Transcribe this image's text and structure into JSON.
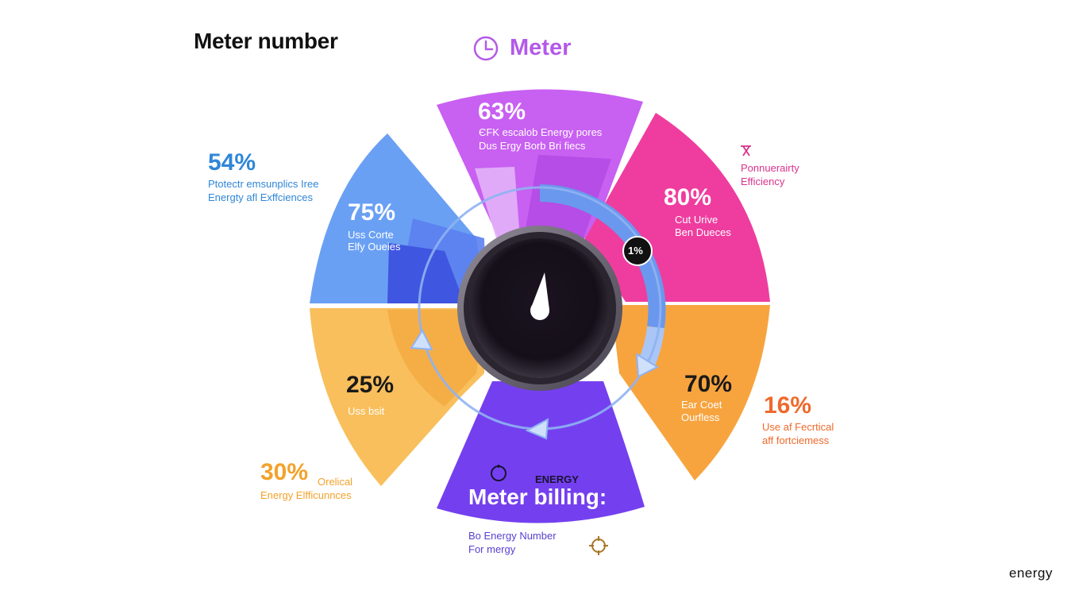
{
  "header": {
    "title": "Meter number",
    "meter_label": "Meter"
  },
  "segments": {
    "purple_top": {
      "percent": "63%",
      "line1": "ЄFK escalob Energy pores",
      "line2": "Dus Ergy Borb Bri fiecs"
    },
    "pink_right": {
      "percent": "80%",
      "line1": "Cut Urive",
      "line2": "Ben Dueces"
    },
    "orange_right": {
      "percent": "70%",
      "line1": "Ear Coet",
      "line2": "Ourfless"
    },
    "violet_bottom": {
      "kicker": "ENERGY",
      "title": "Meter billing:"
    },
    "yellow_left": {
      "percent": "25%",
      "line1": "Uss bsit"
    },
    "blue_left": {
      "percent": "75%",
      "line1": "Uss Corte",
      "line2": "Elfy Oueies"
    }
  },
  "badge": {
    "label": "1%"
  },
  "callouts": {
    "top_left": {
      "percent": "54%",
      "line1": "Ptotectr emsunplics Iree",
      "line2": "Energty afl Exffciences"
    },
    "top_right": {
      "line1": "Ponnuerairty",
      "line2": "Efficiency"
    },
    "mid_right": {
      "percent": "16%",
      "line1": "Use af Fecrtical",
      "line2": "aff fortciemess"
    },
    "bottom_left": {
      "percent": "30%",
      "inline": "Orelical",
      "line2": "Energy Elfficunnces"
    },
    "bottom_center": {
      "line1": "Bo Energy Number",
      "line2": "For mergy"
    }
  },
  "footer": {
    "brand": "energy"
  },
  "colors": {
    "purple": "#c860f2",
    "pink": "#ee3d9f",
    "orange": "#f7a43f",
    "violet": "#7440ef",
    "yellow": "#f8bf5c",
    "blue": "#6aa0f4",
    "dial": "#17131c",
    "callout_blue": "#2f86d8",
    "callout_orange": "#f2a22b",
    "callout_red": "#ee6a2c",
    "callout_pink": "#d9338c"
  }
}
